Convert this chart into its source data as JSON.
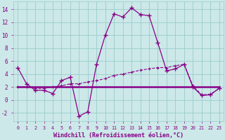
{
  "background_color": "#cce8e8",
  "grid_color": "#99cccc",
  "line_color": "#880088",
  "xlabel": "Windchill (Refroidissement éolien,°C)",
  "xlim": [
    -0.5,
    23.5
  ],
  "ylim": [
    -3.2,
    15.2
  ],
  "yticks": [
    -2,
    0,
    2,
    4,
    6,
    8,
    10,
    12,
    14
  ],
  "xticks": [
    0,
    1,
    2,
    3,
    4,
    5,
    6,
    7,
    8,
    9,
    10,
    11,
    12,
    13,
    14,
    15,
    16,
    17,
    18,
    19,
    20,
    21,
    22,
    23
  ],
  "series1_x": [
    0,
    1,
    2,
    3,
    4,
    5,
    6,
    7,
    8,
    9,
    10,
    11,
    12,
    13,
    14,
    15,
    16,
    17,
    18,
    19,
    20,
    21,
    22,
    23
  ],
  "series1_y": [
    5.0,
    2.5,
    1.5,
    1.5,
    1.0,
    3.0,
    3.5,
    -2.5,
    -1.8,
    5.5,
    10.0,
    13.3,
    12.8,
    14.2,
    13.2,
    13.0,
    8.8,
    4.5,
    4.8,
    5.5,
    2.0,
    0.7,
    0.8,
    1.8
  ],
  "series2_x": [
    0,
    23
  ],
  "series2_y": [
    2.0,
    2.0
  ],
  "series3_x": [
    0,
    1,
    2,
    3,
    4,
    5,
    6,
    7,
    8,
    9,
    10,
    11,
    12,
    13,
    14,
    15,
    16,
    17,
    18,
    19,
    20,
    21,
    22,
    23
  ],
  "series3_y": [
    2.0,
    2.0,
    1.8,
    1.8,
    2.0,
    2.2,
    2.5,
    2.5,
    2.8,
    3.0,
    3.3,
    3.8,
    4.0,
    4.3,
    4.6,
    4.8,
    5.0,
    5.0,
    5.3,
    5.5,
    2.2,
    0.8,
    0.9,
    1.8
  ]
}
